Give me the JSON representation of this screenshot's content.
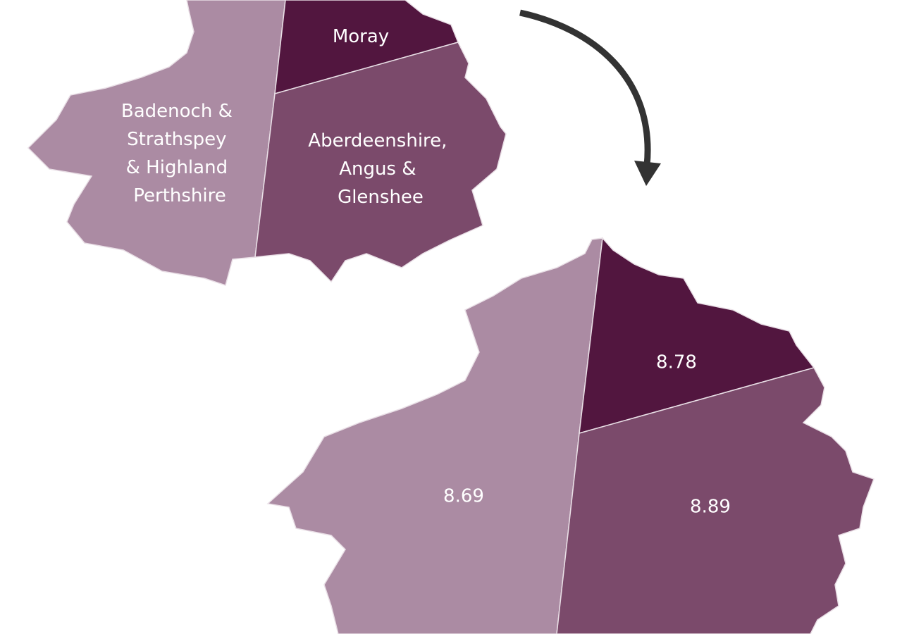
{
  "regions": [
    {
      "label_lines": [
        "Badenoch &",
        "Strathspey",
        "& Highland",
        "Perthshire"
      ],
      "value": 8.69
    },
    {
      "label_lines": [
        "Moray"
      ],
      "value": 8.78
    },
    {
      "label_lines": [
        "Aberdeenshire,",
        "Angus &",
        "Glenshee"
      ],
      "value": 8.89
    }
  ]
}
